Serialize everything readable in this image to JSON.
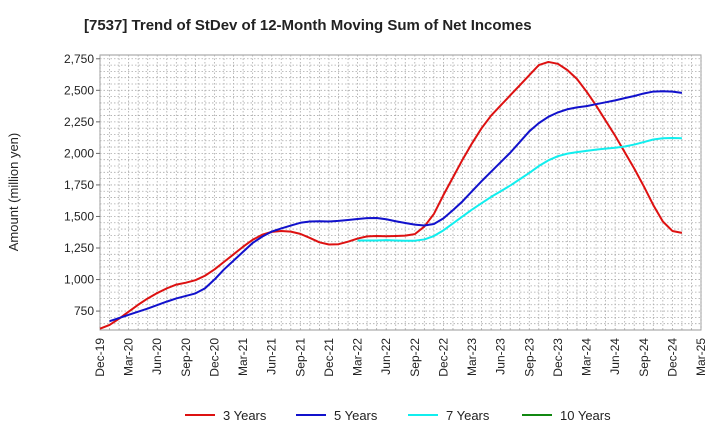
{
  "chart_data": {
    "type": "line",
    "title": "[7537]  Trend of StDev of 12-Month Moving Sum of Net Incomes",
    "ylabel": "Amount (million yen)",
    "xlabel": "",
    "ylim": [
      600,
      2780
    ],
    "y_ticks": [
      750,
      1000,
      1250,
      1500,
      1750,
      2000,
      2250,
      2500,
      2750
    ],
    "y_tick_labels": [
      "750",
      "1,000",
      "1,250",
      "1,500",
      "1,750",
      "2,000",
      "2,250",
      "2,500",
      "2,750"
    ],
    "x_tick_labels": [
      "Dec-19",
      "Mar-20",
      "Jun-20",
      "Sep-20",
      "Dec-20",
      "Mar-21",
      "Jun-21",
      "Sep-21",
      "Dec-21",
      "Mar-22",
      "Jun-22",
      "Sep-22",
      "Dec-22",
      "Mar-23",
      "Jun-23",
      "Sep-23",
      "Dec-23",
      "Mar-24",
      "Jun-24",
      "Sep-24",
      "Dec-24",
      "Mar-25"
    ],
    "grid": true,
    "legend_position": "bottom",
    "series": [
      {
        "name": "3 Years",
        "color": "#dd1111",
        "points": [
          [
            "Dec-19",
            610
          ],
          [
            "Jan-20",
            640
          ],
          [
            "Feb-20",
            690
          ],
          [
            "Mar-20",
            745
          ],
          [
            "Apr-20",
            800
          ],
          [
            "May-20",
            850
          ],
          [
            "Jun-20",
            893
          ],
          [
            "Jul-20",
            930
          ],
          [
            "Aug-20",
            960
          ],
          [
            "Sep-20",
            975
          ],
          [
            "Oct-20",
            995
          ],
          [
            "Nov-20",
            1030
          ],
          [
            "Dec-20",
            1080
          ],
          [
            "Jan-21",
            1140
          ],
          [
            "Feb-21",
            1200
          ],
          [
            "Mar-21",
            1260
          ],
          [
            "Apr-21",
            1315
          ],
          [
            "May-21",
            1355
          ],
          [
            "Jun-21",
            1378
          ],
          [
            "Jul-21",
            1385
          ],
          [
            "Aug-21",
            1380
          ],
          [
            "Sep-21",
            1362
          ],
          [
            "Oct-21",
            1330
          ],
          [
            "Nov-21",
            1295
          ],
          [
            "Dec-21",
            1278
          ],
          [
            "Jan-22",
            1280
          ],
          [
            "Feb-22",
            1300
          ],
          [
            "Mar-22",
            1325
          ],
          [
            "Apr-22",
            1342
          ],
          [
            "May-22",
            1345
          ],
          [
            "Jun-22",
            1343
          ],
          [
            "Jul-22",
            1345
          ],
          [
            "Aug-22",
            1348
          ],
          [
            "Sep-22",
            1360
          ],
          [
            "Oct-22",
            1420
          ],
          [
            "Nov-22",
            1520
          ],
          [
            "Dec-22",
            1670
          ],
          [
            "Jan-23",
            1810
          ],
          [
            "Feb-23",
            1950
          ],
          [
            "Mar-23",
            2080
          ],
          [
            "Apr-23",
            2200
          ],
          [
            "May-23",
            2300
          ],
          [
            "Jun-23",
            2380
          ],
          [
            "Jul-23",
            2460
          ],
          [
            "Aug-23",
            2540
          ],
          [
            "Sep-23",
            2620
          ],
          [
            "Oct-23",
            2700
          ],
          [
            "Nov-23",
            2725
          ],
          [
            "Dec-23",
            2710
          ],
          [
            "Jan-24",
            2660
          ],
          [
            "Feb-24",
            2590
          ],
          [
            "Mar-24",
            2490
          ],
          [
            "Apr-24",
            2380
          ],
          [
            "May-24",
            2260
          ],
          [
            "Jun-24",
            2140
          ],
          [
            "Jul-24",
            2010
          ],
          [
            "Aug-24",
            1880
          ],
          [
            "Sep-24",
            1740
          ],
          [
            "Oct-24",
            1590
          ],
          [
            "Nov-24",
            1460
          ],
          [
            "Dec-24",
            1385
          ],
          [
            "Jan-25",
            1370
          ]
        ]
      },
      {
        "name": "5 Years",
        "color": "#1111cc",
        "points": [
          [
            "Jan-20",
            670
          ],
          [
            "Feb-20",
            695
          ],
          [
            "Mar-20",
            720
          ],
          [
            "Apr-20",
            745
          ],
          [
            "May-20",
            770
          ],
          [
            "Jun-20",
            798
          ],
          [
            "Jul-20",
            825
          ],
          [
            "Aug-20",
            850
          ],
          [
            "Sep-20",
            870
          ],
          [
            "Oct-20",
            890
          ],
          [
            "Nov-20",
            930
          ],
          [
            "Dec-20",
            1000
          ],
          [
            "Jan-21",
            1080
          ],
          [
            "Feb-21",
            1150
          ],
          [
            "Mar-21",
            1220
          ],
          [
            "Apr-21",
            1290
          ],
          [
            "May-21",
            1340
          ],
          [
            "Jun-21",
            1380
          ],
          [
            "Jul-21",
            1405
          ],
          [
            "Aug-21",
            1428
          ],
          [
            "Sep-21",
            1450
          ],
          [
            "Oct-21",
            1460
          ],
          [
            "Nov-21",
            1462
          ],
          [
            "Dec-21",
            1460
          ],
          [
            "Jan-22",
            1465
          ],
          [
            "Feb-22",
            1472
          ],
          [
            "Mar-22",
            1480
          ],
          [
            "Apr-22",
            1487
          ],
          [
            "May-22",
            1488
          ],
          [
            "Jun-22",
            1478
          ],
          [
            "Jul-22",
            1462
          ],
          [
            "Aug-22",
            1448
          ],
          [
            "Sep-22",
            1435
          ],
          [
            "Oct-22",
            1428
          ],
          [
            "Nov-22",
            1440
          ],
          [
            "Dec-22",
            1485
          ],
          [
            "Jan-23",
            1550
          ],
          [
            "Feb-23",
            1620
          ],
          [
            "Mar-23",
            1700
          ],
          [
            "Apr-23",
            1780
          ],
          [
            "May-23",
            1855
          ],
          [
            "Jun-23",
            1930
          ],
          [
            "Jul-23",
            2005
          ],
          [
            "Aug-23",
            2090
          ],
          [
            "Sep-23",
            2175
          ],
          [
            "Oct-23",
            2240
          ],
          [
            "Nov-23",
            2290
          ],
          [
            "Dec-23",
            2325
          ],
          [
            "Jan-24",
            2350
          ],
          [
            "Feb-24",
            2365
          ],
          [
            "Mar-24",
            2375
          ],
          [
            "Apr-24",
            2390
          ],
          [
            "May-24",
            2405
          ],
          [
            "Jun-24",
            2420
          ],
          [
            "Jul-24",
            2438
          ],
          [
            "Aug-24",
            2455
          ],
          [
            "Sep-24",
            2475
          ],
          [
            "Oct-24",
            2490
          ],
          [
            "Nov-24",
            2493
          ],
          [
            "Dec-24",
            2490
          ],
          [
            "Jan-25",
            2480
          ]
        ]
      },
      {
        "name": "7 Years",
        "color": "#11eeee",
        "points": [
          [
            "Mar-22",
            1310
          ],
          [
            "Apr-22",
            1310
          ],
          [
            "May-22",
            1310
          ],
          [
            "Jun-22",
            1312
          ],
          [
            "Jul-22",
            1310
          ],
          [
            "Aug-22",
            1308
          ],
          [
            "Sep-22",
            1308
          ],
          [
            "Oct-22",
            1318
          ],
          [
            "Nov-22",
            1345
          ],
          [
            "Dec-22",
            1390
          ],
          [
            "Jan-23",
            1445
          ],
          [
            "Feb-23",
            1500
          ],
          [
            "Mar-23",
            1555
          ],
          [
            "Apr-23",
            1605
          ],
          [
            "May-23",
            1655
          ],
          [
            "Jun-23",
            1700
          ],
          [
            "Jul-23",
            1745
          ],
          [
            "Aug-23",
            1795
          ],
          [
            "Sep-23",
            1845
          ],
          [
            "Oct-23",
            1900
          ],
          [
            "Nov-23",
            1945
          ],
          [
            "Dec-23",
            1978
          ],
          [
            "Jan-24",
            1998
          ],
          [
            "Feb-24",
            2010
          ],
          [
            "Mar-24",
            2020
          ],
          [
            "Apr-24",
            2030
          ],
          [
            "May-24",
            2038
          ],
          [
            "Jun-24",
            2045
          ],
          [
            "Jul-24",
            2055
          ],
          [
            "Aug-24",
            2070
          ],
          [
            "Sep-24",
            2090
          ],
          [
            "Oct-24",
            2110
          ],
          [
            "Nov-24",
            2120
          ],
          [
            "Dec-24",
            2122
          ],
          [
            "Jan-25",
            2120
          ]
        ]
      },
      {
        "name": "10 Years",
        "color": "#118811",
        "points": []
      }
    ]
  }
}
